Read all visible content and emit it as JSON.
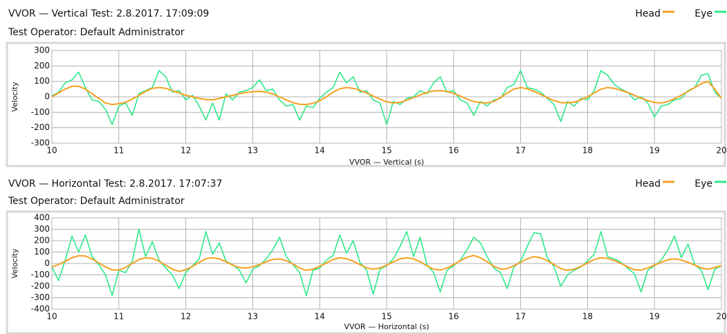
{
  "chart_data": [
    {
      "type": "line",
      "title": "VVOR — Vertical Test: 2.8.2017. 17:09:09",
      "subtitle": "Test Operator: Default Administrator",
      "x_label": "VVOR — Vertical  (s)",
      "y_label": "Velocity",
      "xlim": [
        10,
        20
      ],
      "xticks": [
        10,
        11,
        12,
        13,
        14,
        15,
        16,
        17,
        18,
        19,
        20
      ],
      "ylim": [
        -300,
        300
      ],
      "yticks": [
        -300,
        -200,
        -100,
        0,
        100,
        200,
        300
      ],
      "grid": true,
      "legend": "top-right",
      "x": [
        10,
        10.1,
        10.2,
        10.3,
        10.4,
        10.5,
        10.6,
        10.7,
        10.8,
        10.9,
        11,
        11.1,
        11.2,
        11.3,
        11.4,
        11.5,
        11.6,
        11.7,
        11.8,
        11.9,
        12,
        12.1,
        12.2,
        12.3,
        12.4,
        12.5,
        12.6,
        12.7,
        12.8,
        12.9,
        13,
        13.1,
        13.2,
        13.3,
        13.4,
        13.5,
        13.6,
        13.7,
        13.8,
        13.9,
        14,
        14.1,
        14.2,
        14.3,
        14.4,
        14.5,
        14.6,
        14.7,
        14.8,
        14.9,
        15,
        15.1,
        15.2,
        15.3,
        15.4,
        15.5,
        15.6,
        15.7,
        15.8,
        15.9,
        16,
        16.1,
        16.2,
        16.3,
        16.4,
        16.5,
        16.6,
        16.7,
        16.8,
        16.9,
        17,
        17.1,
        17.2,
        17.3,
        17.4,
        17.5,
        17.6,
        17.7,
        17.8,
        17.9,
        18,
        18.1,
        18.2,
        18.3,
        18.4,
        18.5,
        18.6,
        18.7,
        18.8,
        18.9,
        19,
        19.1,
        19.2,
        19.3,
        19.4,
        19.5,
        19.6,
        19.7,
        19.8,
        19.9,
        20
      ],
      "series": [
        {
          "name": "Eye",
          "color": "#2ee88a",
          "values": [
            5,
            30,
            90,
            110,
            160,
            60,
            -20,
            -30,
            -80,
            -180,
            -60,
            -40,
            -120,
            20,
            40,
            60,
            170,
            130,
            30,
            40,
            -20,
            10,
            -60,
            -150,
            -40,
            -150,
            20,
            -20,
            30,
            40,
            60,
            110,
            40,
            50,
            -20,
            -60,
            -50,
            -150,
            -60,
            -70,
            -10,
            30,
            60,
            160,
            90,
            130,
            30,
            40,
            -20,
            -40,
            -180,
            -30,
            -50,
            -10,
            0,
            40,
            20,
            90,
            130,
            30,
            40,
            -20,
            -40,
            -120,
            -30,
            -60,
            -20,
            -10,
            60,
            80,
            170,
            60,
            50,
            30,
            -10,
            -50,
            -160,
            -30,
            -60,
            -10,
            -20,
            40,
            170,
            140,
            80,
            50,
            30,
            -20,
            0,
            -40,
            -130,
            -60,
            -50,
            -20,
            -10,
            40,
            60,
            140,
            150,
            30,
            -10
          ]
        },
        {
          "name": "Head",
          "color": "#f5a020",
          "values": [
            0,
            25,
            50,
            68,
            68,
            50,
            20,
            -10,
            -40,
            -50,
            -45,
            -35,
            -15,
            10,
            35,
            55,
            60,
            55,
            40,
            25,
            10,
            0,
            -10,
            -18,
            -20,
            -10,
            0,
            10,
            20,
            28,
            33,
            35,
            30,
            18,
            0,
            -20,
            -38,
            -48,
            -50,
            -42,
            -25,
            0,
            30,
            52,
            60,
            55,
            42,
            25,
            5,
            -15,
            -32,
            -40,
            -35,
            -22,
            -5,
            12,
            28,
            38,
            40,
            35,
            22,
            5,
            -15,
            -30,
            -38,
            -40,
            -30,
            -5,
            25,
            50,
            60,
            52,
            35,
            15,
            -5,
            -25,
            -37,
            -40,
            -35,
            -20,
            0,
            25,
            50,
            60,
            55,
            42,
            28,
            10,
            -8,
            -25,
            -37,
            -40,
            -30,
            -12,
            10,
            35,
            60,
            85,
            100,
            50,
            -10
          ]
        }
      ]
    },
    {
      "type": "line",
      "title": "VVOR — Horizontal Test: 2.8.2017. 17:07:37",
      "subtitle": "Test Operator: Default Administrator",
      "x_label": "VVOR — Horizontal  (s)",
      "y_label": "Velocity",
      "xlim": [
        10,
        20
      ],
      "xticks": [
        10,
        11,
        12,
        13,
        14,
        15,
        16,
        17,
        18,
        19,
        20
      ],
      "ylim": [
        -400,
        400
      ],
      "yticks": [
        -400,
        -300,
        -200,
        -100,
        0,
        100,
        200,
        300,
        400
      ],
      "grid": true,
      "legend": "top-right",
      "x": [
        10,
        10.1,
        10.2,
        10.3,
        10.4,
        10.5,
        10.6,
        10.7,
        10.8,
        10.9,
        11,
        11.1,
        11.2,
        11.3,
        11.4,
        11.5,
        11.6,
        11.7,
        11.8,
        11.9,
        12,
        12.1,
        12.2,
        12.3,
        12.4,
        12.5,
        12.6,
        12.7,
        12.8,
        12.9,
        13,
        13.1,
        13.2,
        13.3,
        13.4,
        13.5,
        13.6,
        13.7,
        13.8,
        13.9,
        14,
        14.1,
        14.2,
        14.3,
        14.4,
        14.5,
        14.6,
        14.7,
        14.8,
        14.9,
        15,
        15.1,
        15.2,
        15.3,
        15.4,
        15.5,
        15.6,
        15.7,
        15.8,
        15.9,
        16,
        16.1,
        16.2,
        16.3,
        16.4,
        16.5,
        16.6,
        16.7,
        16.8,
        16.9,
        17,
        17.1,
        17.2,
        17.3,
        17.4,
        17.5,
        17.6,
        17.7,
        17.8,
        17.9,
        18,
        18.1,
        18.2,
        18.3,
        18.4,
        18.5,
        18.6,
        18.7,
        18.8,
        18.9,
        19,
        19.1,
        19.2,
        19.3,
        19.4,
        19.5,
        19.6,
        19.7,
        19.8,
        19.9,
        20
      ],
      "series": [
        {
          "name": "Eye",
          "color": "#2ee88a",
          "values": [
            -30,
            -150,
            30,
            240,
            100,
            250,
            60,
            -10,
            -100,
            -280,
            -60,
            -80,
            20,
            300,
            60,
            190,
            30,
            -40,
            -100,
            -220,
            -80,
            -20,
            40,
            280,
            80,
            180,
            20,
            -10,
            -60,
            -170,
            -50,
            -20,
            40,
            120,
            230,
            60,
            -10,
            -80,
            -280,
            -60,
            -40,
            30,
            70,
            250,
            90,
            200,
            10,
            -60,
            -270,
            -50,
            -20,
            40,
            150,
            280,
            60,
            230,
            -10,
            -80,
            -250,
            -60,
            -20,
            30,
            120,
            230,
            180,
            60,
            -40,
            -80,
            -220,
            -30,
            20,
            150,
            270,
            260,
            50,
            -30,
            -200,
            -100,
            -60,
            -30,
            20,
            80,
            280,
            60,
            40,
            10,
            -40,
            -90,
            -250,
            -60,
            -20,
            30,
            120,
            240,
            50,
            170,
            -10,
            -60,
            -230,
            -50,
            -20
          ]
        },
        {
          "name": "Head",
          "color": "#f5a020",
          "values": [
            -30,
            -10,
            20,
            50,
            68,
            65,
            40,
            5,
            -30,
            -55,
            -58,
            -35,
            0,
            35,
            50,
            45,
            20,
            -15,
            -50,
            -70,
            -55,
            -25,
            10,
            42,
            50,
            40,
            15,
            -15,
            -35,
            -40,
            -30,
            -10,
            15,
            35,
            40,
            25,
            -5,
            -40,
            -60,
            -50,
            -25,
            5,
            35,
            50,
            42,
            20,
            -10,
            -38,
            -50,
            -40,
            -15,
            15,
            40,
            50,
            40,
            15,
            -20,
            -50,
            -58,
            -40,
            -10,
            25,
            55,
            70,
            50,
            15,
            -25,
            -50,
            -45,
            -20,
            10,
            40,
            60,
            50,
            25,
            -10,
            -45,
            -60,
            -50,
            -25,
            5,
            35,
            50,
            45,
            25,
            0,
            -30,
            -55,
            -58,
            -40,
            -15,
            10,
            32,
            40,
            30,
            10,
            -15,
            -40,
            -50,
            -35,
            -20
          ]
        }
      ]
    }
  ]
}
